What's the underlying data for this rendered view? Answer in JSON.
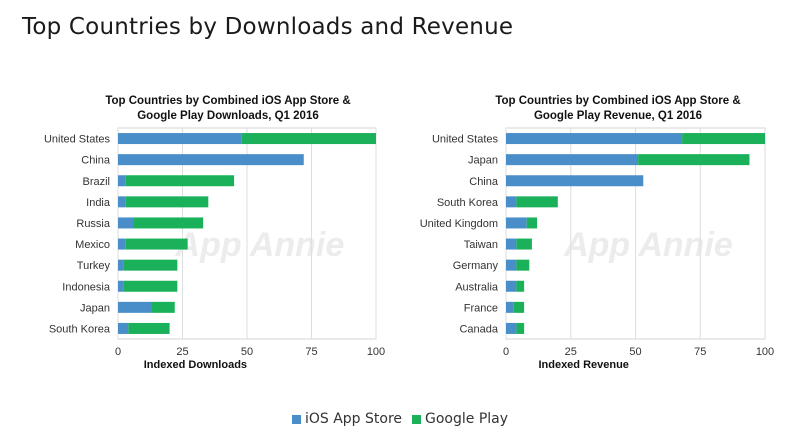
{
  "page": {
    "title": "Top Countries by Downloads and Revenue"
  },
  "colors": {
    "ios": "#4a8ec9",
    "google_play": "#1bb15a"
  },
  "legend": {
    "ios_label": "iOS App Store",
    "gp_label": "Google Play"
  },
  "chart_data": [
    {
      "type": "bar",
      "orientation": "horizontal",
      "stacked": true,
      "title": "Top Countries by Combined iOS App Store & Google Play Downloads, Q1 2016",
      "title_lines": [
        "Top Countries by Combined iOS App Store &",
        "Google Play Downloads, Q1 2016"
      ],
      "xlabel": "Indexed Downloads",
      "ylabel": "",
      "xlim": [
        0,
        100
      ],
      "xticks": [
        0,
        25,
        50,
        75,
        100
      ],
      "grid": true,
      "watermark": "App Annie",
      "categories": [
        "United States",
        "China",
        "Brazil",
        "India",
        "Russia",
        "Mexico",
        "Turkey",
        "Indonesia",
        "Japan",
        "South Korea"
      ],
      "series": [
        {
          "name": "iOS App Store",
          "values": [
            48,
            72,
            3,
            3,
            6,
            3,
            2,
            2,
            13,
            4
          ]
        },
        {
          "name": "Google Play",
          "values": [
            52,
            0,
            42,
            32,
            27,
            24,
            21,
            21,
            9,
            16
          ]
        }
      ]
    },
    {
      "type": "bar",
      "orientation": "horizontal",
      "stacked": true,
      "title": "Top Countries by Combined iOS App Store & Google Play Revenue, Q1 2016",
      "title_lines": [
        "Top Countries by Combined iOS App Store &",
        "Google Play Revenue, Q1 2016"
      ],
      "xlabel": "Indexed Revenue",
      "ylabel": "",
      "xlim": [
        0,
        100
      ],
      "xticks": [
        0,
        25,
        50,
        75,
        100
      ],
      "grid": true,
      "watermark": "App Annie",
      "categories": [
        "United States",
        "Japan",
        "China",
        "South Korea",
        "United Kingdom",
        "Taiwan",
        "Germany",
        "Australia",
        "France",
        "Canada"
      ],
      "series": [
        {
          "name": "iOS App Store",
          "values": [
            68,
            51,
            53,
            4,
            8,
            4,
            4,
            4,
            3,
            4
          ]
        },
        {
          "name": "Google Play",
          "values": [
            32,
            43,
            0,
            16,
            4,
            6,
            5,
            3,
            4,
            3
          ]
        }
      ]
    }
  ]
}
